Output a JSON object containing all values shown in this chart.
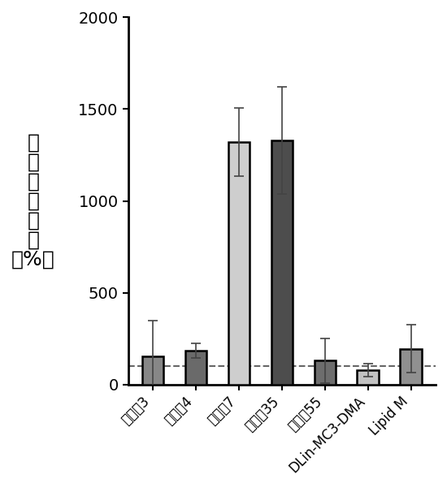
{
  "categories": [
    "化合眃3",
    "化合眃4",
    "化合眃7",
    "化合甸35",
    "化合甸55",
    "DLin-MC3-DMA",
    "Lipid M"
  ],
  "values": [
    155,
    185,
    1320,
    1330,
    130,
    80,
    195
  ],
  "errors": [
    195,
    40,
    185,
    290,
    120,
    35,
    130
  ],
  "bar_colors": [
    "#878787",
    "#6a6a6a",
    "#cecece",
    "#4d4d4d",
    "#6d6d6d",
    "#c2c2c2",
    "#909090"
  ],
  "bar_edgecolor": "#000000",
  "bar_linewidth": 1.8,
  "dashed_line_y": 100,
  "dashed_line_color": "#666666",
  "dashed_line_style": "--",
  "ylabel_chinese": "相对荧光强度",
  "ylabel_unit": "（%）",
  "ylim": [
    0,
    2000
  ],
  "yticks": [
    0,
    500,
    1000,
    1500,
    2000
  ],
  "ylabel_fontsize": 18,
  "tick_fontsize": 14,
  "xtick_fontsize": 12,
  "background_color": "#ffffff",
  "bar_width": 0.5,
  "capsize": 4,
  "error_linewidth": 1.2,
  "error_capthick": 1.2,
  "error_color": "#444444"
}
